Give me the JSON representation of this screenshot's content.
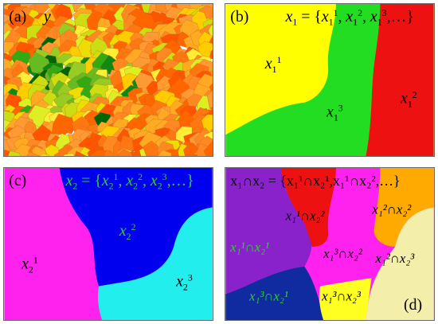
{
  "panels": {
    "a": {
      "tag": "(a)",
      "var": "y"
    },
    "b": {
      "tag": "(b)",
      "set_x": "x",
      "set_sub": "1",
      "set_rest": " = {",
      "items": [
        {
          "b": "x",
          "sub": "1",
          "sup": "1",
          "sep": ", "
        },
        {
          "b": "x",
          "sub": "1",
          "sup": "2",
          "sep": ", "
        },
        {
          "b": "x",
          "sub": "1",
          "sup": "3",
          "sep": ",…}"
        }
      ],
      "regions": [
        {
          "b": "x",
          "sub": "1",
          "sup": "1"
        },
        {
          "b": "x",
          "sub": "1",
          "sup": "3"
        },
        {
          "b": "x",
          "sub": "1",
          "sup": "2"
        }
      ],
      "colors": {
        "yellow": "#ffff00",
        "green": "#22dd22",
        "red": "#ee1111"
      }
    },
    "c": {
      "tag": "(c)",
      "set_x": "x",
      "set_sub": "2",
      "set_rest": " = {",
      "items": [
        {
          "b": "x",
          "sub": "2",
          "sup": "1",
          "sep": ", "
        },
        {
          "b": "x",
          "sub": "2",
          "sup": "2",
          "sep": ", "
        },
        {
          "b": "x",
          "sub": "2",
          "sup": "3",
          "sep": ",…}"
        }
      ],
      "regions": [
        {
          "b": "x",
          "sub": "2",
          "sup": "1"
        },
        {
          "b": "x",
          "sub": "2",
          "sup": "2"
        },
        {
          "b": "x",
          "sub": "2",
          "sup": "3"
        }
      ],
      "colors": {
        "magenta": "#ff22ee",
        "blue": "#0000ee",
        "cyan": "#22eeee",
        "label_green": "#33cc33"
      }
    },
    "d": {
      "tag": "(d)",
      "head": "x₁∩x₂ = {x₁¹∩x₂¹,x₁¹∩x₂²,…}",
      "regions": [
        "x₁¹∩x₂²",
        "x₁²∩x₂²",
        "x₁¹∩x₂¹",
        "x₁³∩x₂²",
        "x₁²∩x₂³",
        "x₁³∩x₂¹",
        "x₁³∩x₂³"
      ],
      "colors": {
        "purple": "#8a22cc",
        "red": "#ee1111",
        "orange": "#ffaa00",
        "magenta": "#ff22ee",
        "navy": "#102aa0",
        "yellow": "#ffff22",
        "cream": "#f3eeaa",
        "label_green": "#33cc33"
      }
    }
  }
}
